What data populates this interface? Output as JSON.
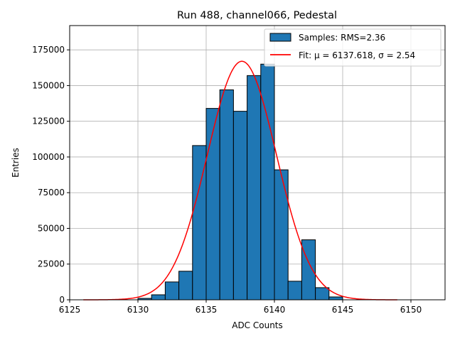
{
  "chart_data": {
    "type": "histogram",
    "title": "Run 488, channel066, Pedestal",
    "xlabel": "ADC Counts",
    "ylabel": "Entries",
    "xlim": [
      6125,
      6152.5
    ],
    "ylim": [
      0,
      192000
    ],
    "xticks": [
      6125,
      6130,
      6135,
      6140,
      6145,
      6150
    ],
    "yticks": [
      0,
      25000,
      50000,
      75000,
      100000,
      125000,
      150000,
      175000
    ],
    "grid": true,
    "legend_position": "upper-right",
    "bin_width": 1,
    "bins": [
      {
        "left": 6130,
        "value": 1000
      },
      {
        "left": 6131,
        "value": 3500
      },
      {
        "left": 6132,
        "value": 12500
      },
      {
        "left": 6133,
        "value": 20000
      },
      {
        "left": 6134,
        "value": 108000
      },
      {
        "left": 6135,
        "value": 134000
      },
      {
        "left": 6136,
        "value": 147000
      },
      {
        "left": 6137,
        "value": 132000
      },
      {
        "left": 6138,
        "value": 157000
      },
      {
        "left": 6139,
        "value": 165000
      },
      {
        "left": 6140,
        "value": 91000
      },
      {
        "left": 6141,
        "value": 13000
      },
      {
        "left": 6142,
        "value": 42000
      },
      {
        "left": 6143,
        "value": 8500
      },
      {
        "left": 6144,
        "value": 2000
      }
    ],
    "fit": {
      "mu": 6137.618,
      "sigma": 2.54,
      "amplitude": 167000,
      "x_range": [
        6126,
        6149
      ]
    },
    "series": [
      {
        "name": "Samples: RMS=2.36",
        "kind": "histogram",
        "color": "#1f77b4"
      },
      {
        "name": "Fit:",
        "mu_label": "μ = 6137.618",
        "sigma_label": "σ = 2.54",
        "kind": "line",
        "color": "#ff0000"
      }
    ]
  }
}
